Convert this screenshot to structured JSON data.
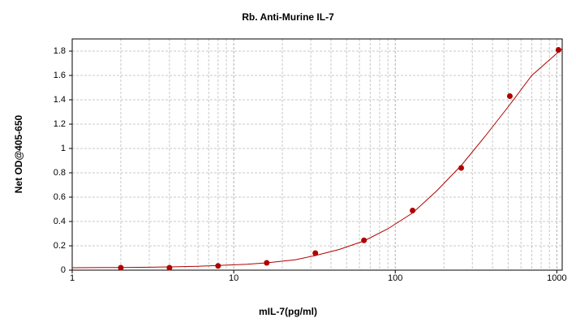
{
  "chart_data": {
    "type": "scatter",
    "title": "Rb. Anti-Murine IL-7",
    "x_label": "mIL-7(pg/ml)",
    "y_label": "Net OD@405-650",
    "x_scale": "log",
    "grid": true,
    "xlim": [
      1,
      1080
    ],
    "ylim": [
      0,
      1.9
    ],
    "xticks": [
      1,
      10,
      100,
      1000
    ],
    "yticks": [
      0,
      0.2,
      0.4,
      0.6,
      0.8,
      1,
      1.2,
      1.4,
      1.6,
      1.8
    ],
    "series": [
      {
        "type": "scatter",
        "color": "#b00000",
        "x": [
          2,
          4,
          8,
          16,
          32,
          64,
          128,
          256,
          512,
          1024
        ],
        "values": [
          0.02,
          0.02,
          0.035,
          0.06,
          0.14,
          0.245,
          0.49,
          0.84,
          1.43,
          1.81
        ]
      },
      {
        "type": "line",
        "color": "#b00000",
        "x": [
          1,
          2,
          3,
          4,
          6,
          8,
          12,
          16,
          24,
          32,
          45,
          64,
          90,
          128,
          180,
          256,
          360,
          512,
          700,
          1080
        ],
        "values": [
          0.02,
          0.022,
          0.024,
          0.027,
          0.032,
          0.038,
          0.048,
          0.06,
          0.085,
          0.12,
          0.17,
          0.24,
          0.34,
          0.47,
          0.65,
          0.86,
          1.1,
          1.36,
          1.6,
          1.82
        ]
      }
    ]
  }
}
